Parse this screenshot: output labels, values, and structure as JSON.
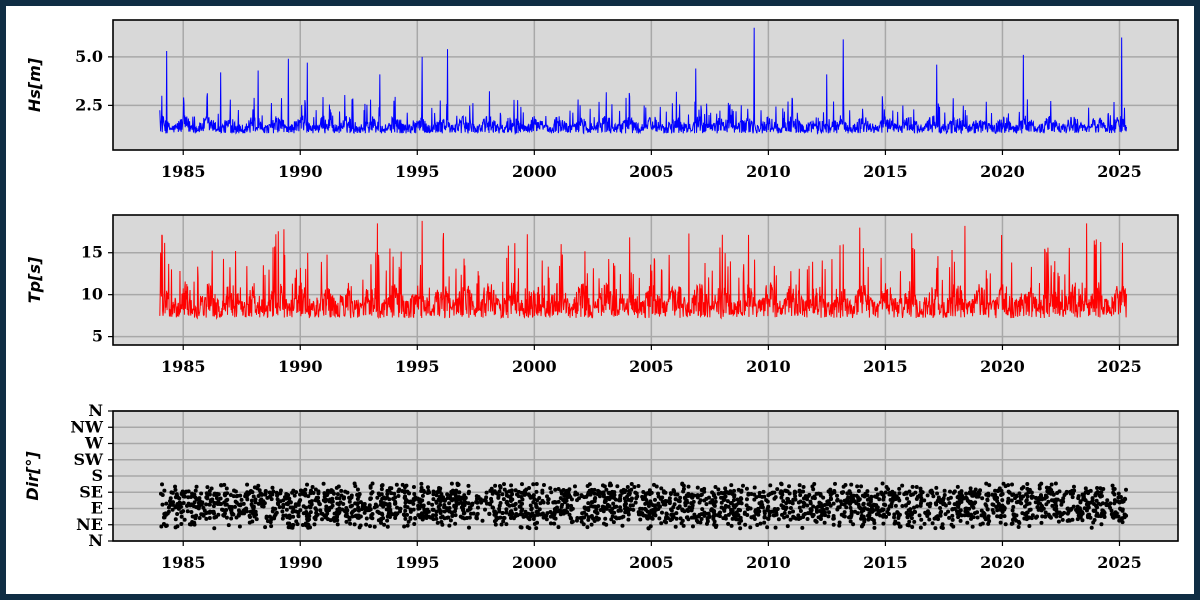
{
  "colors": {
    "frame": "#0f2d44",
    "panel_bg": "#d8d8d8",
    "grid": "#a8a8a8",
    "hs_line": "#0000ff",
    "tp_line": "#ff0000",
    "dir_points": "#000000"
  },
  "chart_data": [
    {
      "type": "line",
      "ylabel": "Hs[m]",
      "xlim": [
        1982.0,
        2027.5
      ],
      "ylim": [
        0.2,
        6.9
      ],
      "xticks": [
        1985,
        1990,
        1995,
        2000,
        2005,
        2010,
        2015,
        2020,
        2025
      ],
      "yticks": [
        {
          "value": 2.5,
          "label": "2.5"
        },
        {
          "value": 5.0,
          "label": "5.0"
        }
      ],
      "grid": true,
      "series": [
        {
          "color": "#0000ff",
          "x_start": 1984.0,
          "x_end": 2025.3,
          "y_floor": 0.5,
          "y_typical": [
            0.8,
            2.5
          ],
          "peaks": [
            {
              "x": 1984.3,
              "y": 5.3
            },
            {
              "x": 1986.6,
              "y": 4.2
            },
            {
              "x": 1988.2,
              "y": 4.3
            },
            {
              "x": 1989.5,
              "y": 4.9
            },
            {
              "x": 1990.3,
              "y": 4.7
            },
            {
              "x": 1993.4,
              "y": 4.1
            },
            {
              "x": 1995.2,
              "y": 5.0
            },
            {
              "x": 1996.3,
              "y": 5.4
            },
            {
              "x": 2006.9,
              "y": 4.4
            },
            {
              "x": 2009.4,
              "y": 6.5
            },
            {
              "x": 2012.5,
              "y": 4.1
            },
            {
              "x": 2013.2,
              "y": 5.9
            },
            {
              "x": 2017.2,
              "y": 4.6
            },
            {
              "x": 2020.9,
              "y": 5.1
            },
            {
              "x": 2025.1,
              "y": 6.0
            }
          ]
        }
      ]
    },
    {
      "type": "line",
      "ylabel": "Tp[s]",
      "xlim": [
        1982.0,
        2027.5
      ],
      "ylim": [
        4.0,
        19.5
      ],
      "xticks": [
        1985,
        1990,
        1995,
        2000,
        2005,
        2010,
        2015,
        2020,
        2025
      ],
      "yticks": [
        {
          "value": 5,
          "label": "5"
        },
        {
          "value": 10,
          "label": "10"
        },
        {
          "value": 15,
          "label": "15"
        }
      ],
      "grid": true,
      "series": [
        {
          "color": "#ff0000",
          "x_start": 1984.0,
          "x_end": 2025.3,
          "y_floor": 4.5,
          "y_typical": [
            6.0,
            14.0
          ],
          "peaks": [
            {
              "x": 1989.3,
              "y": 17.8
            },
            {
              "x": 1993.3,
              "y": 18.5
            },
            {
              "x": 1995.2,
              "y": 18.8
            },
            {
              "x": 1999.7,
              "y": 17.2
            },
            {
              "x": 2006.6,
              "y": 17.3
            },
            {
              "x": 2013.9,
              "y": 18.0
            },
            {
              "x": 2018.4,
              "y": 18.2
            },
            {
              "x": 2023.6,
              "y": 18.5
            }
          ]
        }
      ]
    },
    {
      "type": "scatter",
      "ylabel": "Dir[°]",
      "xlim": [
        1982.0,
        2027.5
      ],
      "ylim": [
        0,
        360
      ],
      "xticks": [
        1985,
        1990,
        1995,
        2000,
        2005,
        2010,
        2015,
        2020,
        2025
      ],
      "yticks": [
        {
          "value": 0,
          "label": "N"
        },
        {
          "value": 45,
          "label": "NE"
        },
        {
          "value": 90,
          "label": "E"
        },
        {
          "value": 135,
          "label": "SE"
        },
        {
          "value": 180,
          "label": "S"
        },
        {
          "value": 225,
          "label": "SW"
        },
        {
          "value": 270,
          "label": "W"
        },
        {
          "value": 315,
          "label": "NW"
        },
        {
          "value": 360,
          "label": "N"
        }
      ],
      "grid": true,
      "series": [
        {
          "color": "#000000",
          "x_start": 1984.0,
          "x_end": 2025.3,
          "y_typical": [
            60,
            140
          ],
          "y_range": [
            35,
            160
          ]
        }
      ]
    }
  ]
}
